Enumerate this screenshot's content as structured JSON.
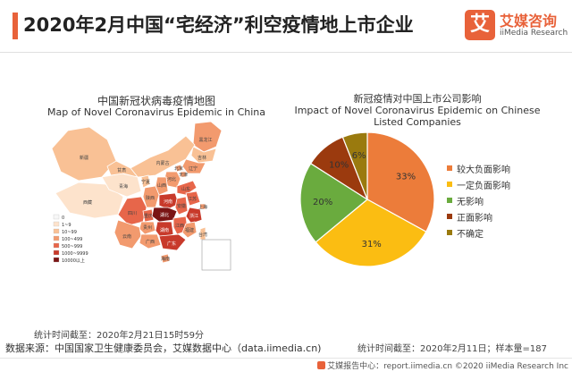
{
  "header": {
    "title": "2020年2月中国“宅经济”利空疫情地上市企业",
    "logo_mark": "艾",
    "logo_cn": "艾媒咨询",
    "logo_en": "iiMedia Research"
  },
  "map": {
    "title_cn": "中国新冠状病毒疫情地图",
    "title_en": "Map of Novel Coronavirus Epidemic in China",
    "legend": [
      {
        "label": "0",
        "color": "#f7f7f7"
      },
      {
        "label": "1~9",
        "color": "#fde3cc"
      },
      {
        "label": "10~99",
        "color": "#f9c195"
      },
      {
        "label": "100~499",
        "color": "#f29a6e"
      },
      {
        "label": "500~999",
        "color": "#e7664a"
      },
      {
        "label": "1000~9999",
        "color": "#c83a2b"
      },
      {
        "label": "10000以上",
        "color": "#7a1414"
      }
    ],
    "regions": [
      {
        "name": "黑龙江",
        "color": "#f29a6e"
      },
      {
        "name": "吉林",
        "color": "#f9c195"
      },
      {
        "name": "辽宁",
        "color": "#f29a6e"
      },
      {
        "name": "内蒙古",
        "color": "#f9c195"
      },
      {
        "name": "新疆",
        "color": "#f9c195"
      },
      {
        "name": "西藏",
        "color": "#fde3cc"
      },
      {
        "name": "青海",
        "color": "#fde3cc"
      },
      {
        "name": "甘肃",
        "color": "#f9c195"
      },
      {
        "name": "宁夏",
        "color": "#f9c195"
      },
      {
        "name": "北京",
        "color": "#f29a6e"
      },
      {
        "name": "天津",
        "color": "#f29a6e"
      },
      {
        "name": "河北",
        "color": "#f29a6e"
      },
      {
        "name": "山西",
        "color": "#f29a6e"
      },
      {
        "name": "陕西",
        "color": "#f29a6e"
      },
      {
        "name": "山东",
        "color": "#e7664a"
      },
      {
        "name": "河南",
        "color": "#c83a2b"
      },
      {
        "name": "四川",
        "color": "#e7664a"
      },
      {
        "name": "重庆",
        "color": "#e7664a"
      },
      {
        "name": "湖北",
        "color": "#7a1414"
      },
      {
        "name": "安徽",
        "color": "#e7664a"
      },
      {
        "name": "江苏",
        "color": "#e7664a"
      },
      {
        "name": "上海",
        "color": "#f29a6e"
      },
      {
        "name": "浙江",
        "color": "#c83a2b"
      },
      {
        "name": "湖南",
        "color": "#c83a2b"
      },
      {
        "name": "江西",
        "color": "#e7664a"
      },
      {
        "name": "福建",
        "color": "#f29a6e"
      },
      {
        "name": "贵州",
        "color": "#f29a6e"
      },
      {
        "name": "云南",
        "color": "#f29a6e"
      },
      {
        "name": "广西",
        "color": "#f29a6e"
      },
      {
        "name": "广东",
        "color": "#c83a2b"
      },
      {
        "name": "海南",
        "color": "#f29a6e"
      },
      {
        "name": "台湾",
        "color": "#f9c195"
      }
    ]
  },
  "chart_data": {
    "type": "pie",
    "title": "新冠疫情对中国上市公司影响",
    "subtitle": "Impact of Novel Coronavirus Epidemic on Chinese Listed Companies",
    "slices": [
      {
        "label": "较大负面影响",
        "value": 33,
        "display": "33%",
        "color": "#ec7c3a"
      },
      {
        "label": "一定负面影响",
        "value": 31,
        "display": "31%",
        "color": "#fbbd12"
      },
      {
        "label": "无影响",
        "value": 20,
        "display": "20%",
        "color": "#6aab3e"
      },
      {
        "label": "正面影响",
        "value": 10,
        "display": "10%",
        "color": "#9b3a0e"
      },
      {
        "label": "不确定",
        "value": 6,
        "display": "6%",
        "color": "#9a7a0e"
      }
    ],
    "legend_position": "right"
  },
  "notes": {
    "map_time": "统计时间截至：2020年2月21日15时59分",
    "pie_time": "统计时间截至：2020年2月11日；样本量=187",
    "source": "数据来源：中国国家卫生健康委员会，艾媒数据中心（data.iimedia.cn)",
    "footer": "艾媒报告中心：report.iimedia.cn  ©2020  iiMedia Research Inc"
  }
}
